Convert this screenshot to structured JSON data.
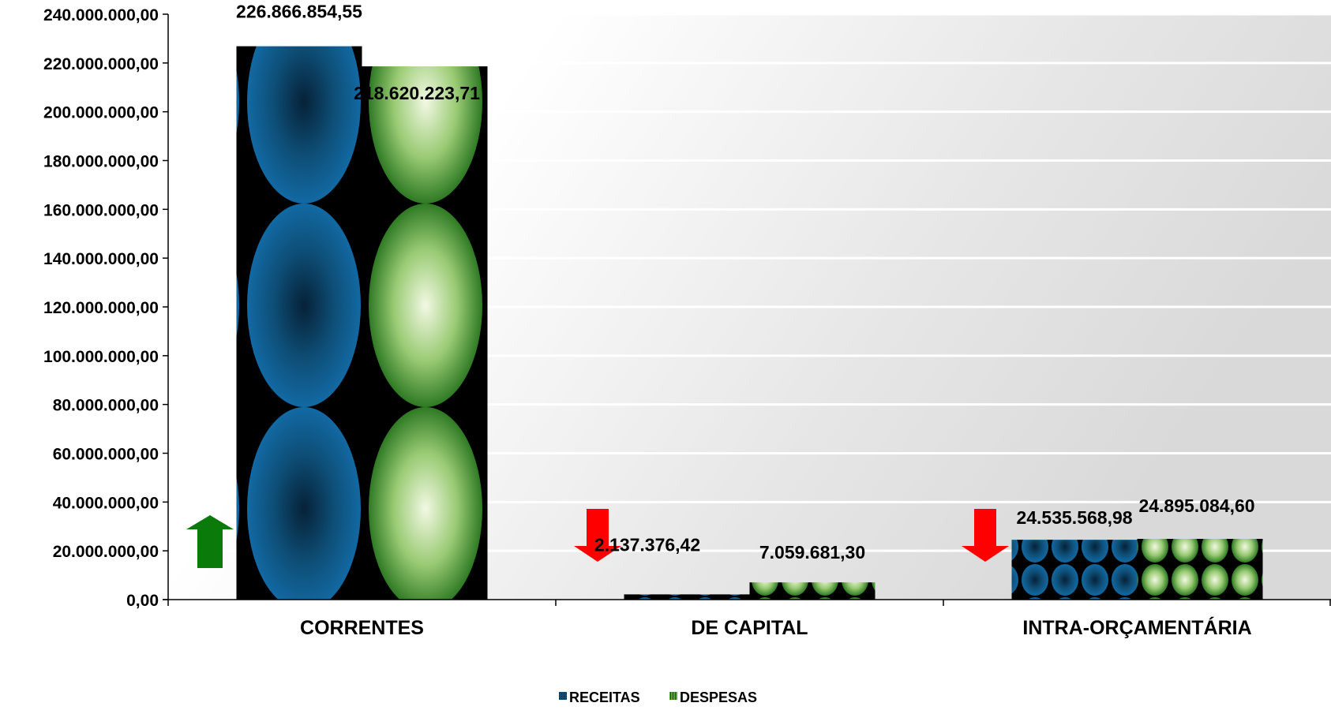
{
  "chart_data": {
    "type": "bar",
    "categories": [
      "CORRENTES",
      "DE CAPITAL",
      "INTRA-ORÇAMENTÁRIA"
    ],
    "series": [
      {
        "name": "RECEITAS",
        "values": [
          226866854.55,
          2137376.42,
          24535568.98
        ],
        "labels": [
          "226.866.854,55",
          "2.137.376,42",
          "24.535.568,98"
        ],
        "color": "#0f5a86"
      },
      {
        "name": "DESPESAS",
        "values": [
          218620223.71,
          7059681.3,
          24895084.6
        ],
        "labels": [
          "218.620.223,71",
          "7.059.681,30",
          "24.895.084,60"
        ],
        "color": "#5aa43c"
      }
    ],
    "ylim": [
      0,
      240000000
    ],
    "yticks": [
      0,
      20000000,
      40000000,
      60000000,
      80000000,
      100000000,
      120000000,
      140000000,
      160000000,
      180000000,
      200000000,
      220000000,
      240000000
    ],
    "ytick_labels": [
      "0,00",
      "20.000.000,00",
      "40.000.000,00",
      "60.000.000,00",
      "80.000.000,00",
      "100.000.000,00",
      "120.000.000,00",
      "140.000.000,00",
      "160.000.000,00",
      "180.000.000,00",
      "200.000.000,00",
      "220.000.000,00",
      "240.000.000,00"
    ],
    "grid": true,
    "legend_position": "bottom",
    "trend_arrows": [
      {
        "category": "CORRENTES",
        "direction": "up",
        "color": "#0a7a0a"
      },
      {
        "category": "DE CAPITAL",
        "direction": "down",
        "color": "#ff0000"
      },
      {
        "category": "INTRA-ORÇAMENTÁRIA",
        "direction": "down",
        "color": "#ff0000"
      }
    ]
  }
}
